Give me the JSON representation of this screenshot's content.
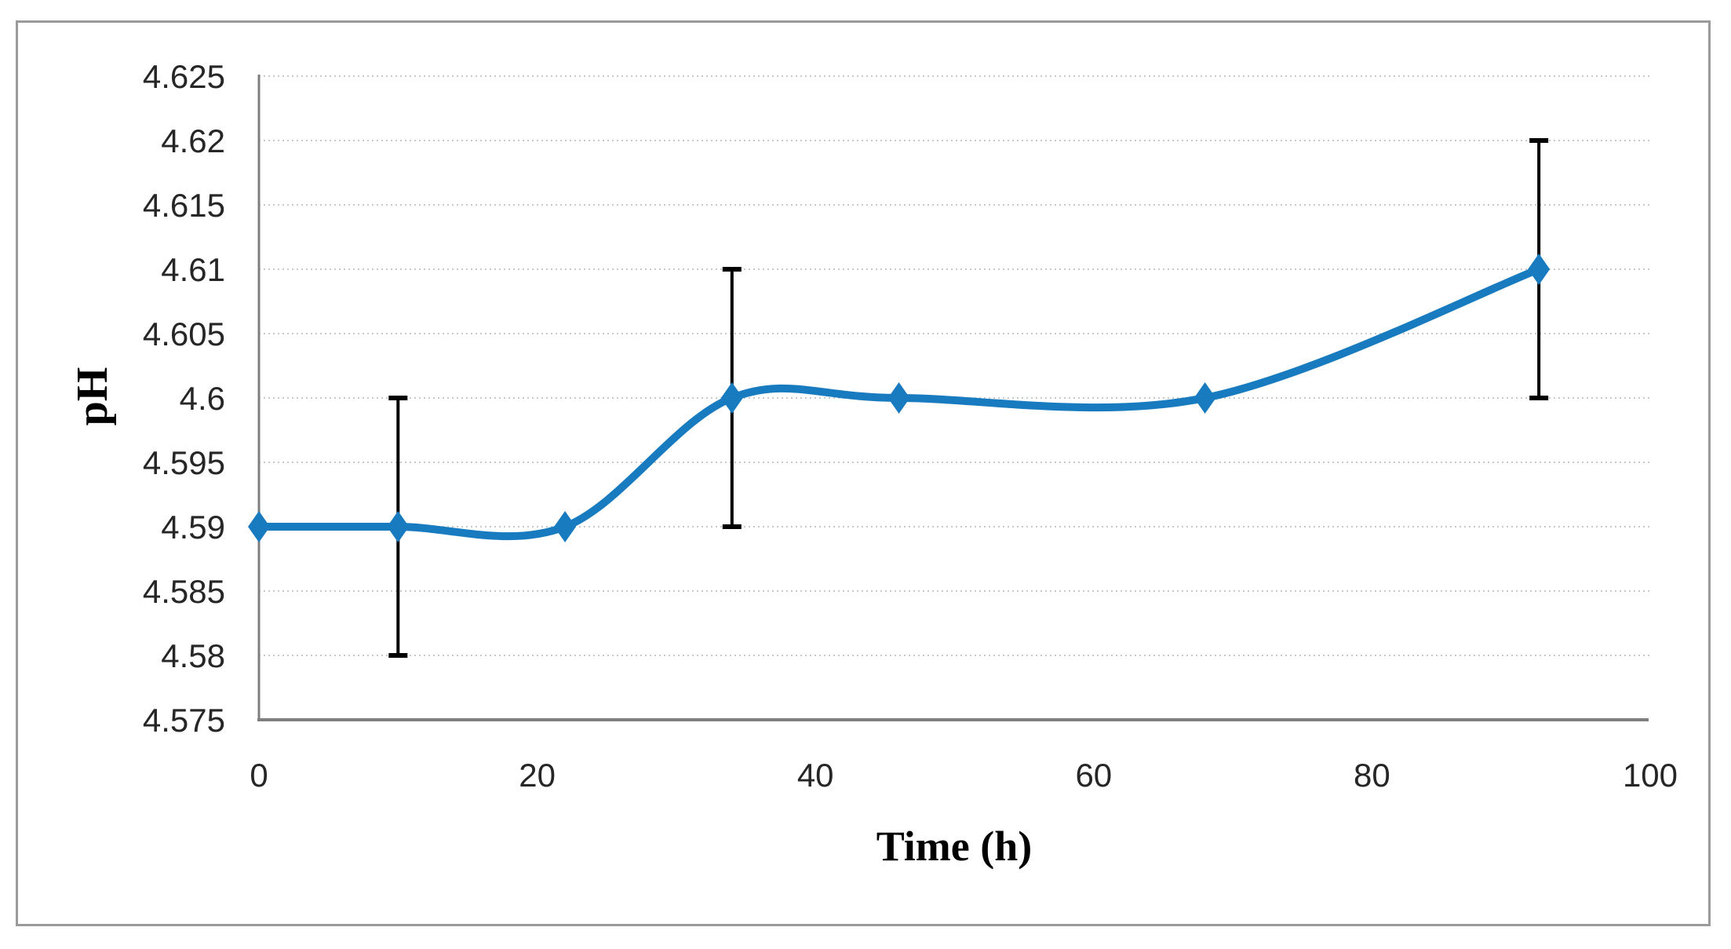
{
  "chart_data": {
    "type": "line",
    "title": "",
    "xlabel": "Time (h)",
    "ylabel": "pH",
    "x": [
      0,
      10,
      22,
      34,
      46,
      68,
      92
    ],
    "y": [
      4.59,
      4.59,
      4.59,
      4.6,
      4.6,
      4.6,
      4.61
    ],
    "error_y": [
      0,
      0.01,
      0,
      0.01,
      0,
      0,
      0.01
    ],
    "xlim": [
      0,
      100
    ],
    "ylim": [
      4.575,
      4.625
    ],
    "x_tick_values": [
      0,
      20,
      40,
      60,
      80,
      100
    ],
    "x_tick_labels": [
      "0",
      "20",
      "40",
      "60",
      "80",
      "100"
    ],
    "y_tick_values": [
      4.575,
      4.58,
      4.585,
      4.59,
      4.595,
      4.6,
      4.605,
      4.61,
      4.615,
      4.62,
      4.625
    ],
    "y_tick_labels": [
      "4.575",
      "4.58",
      "4.585",
      "4.59",
      "4.595",
      "4.6",
      "4.605",
      "4.61",
      "4.615",
      "4.62",
      "4.625"
    ],
    "grid": true,
    "legend": false,
    "smooth": true,
    "marker": "diamond",
    "series_color": "#187BC0",
    "error_bar_color": "#000000",
    "gridline_color": "#c9c9c9",
    "axis_line_color": "#7f7f7f",
    "frame_color": "#9a9a9a"
  }
}
